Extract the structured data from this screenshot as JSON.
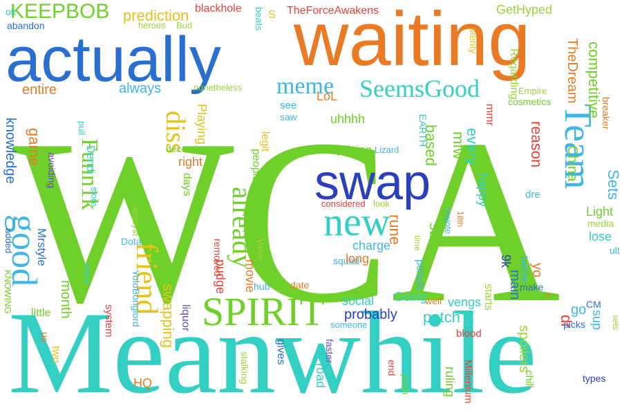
{
  "palette": {
    "green": "#6fd02a",
    "lime": "#9bd63a",
    "blue": "#2a6fd0",
    "navy": "#2b3fbf",
    "orange": "#ea7a24",
    "teal": "#33cfc3",
    "red": "#e8433a",
    "yellow": "#e6c21c",
    "sky": "#3fb6e6",
    "purple": "#6b4dbf"
  },
  "words": [
    {
      "text": "WCA",
      "color": "green"
    },
    {
      "text": "Meanwhile",
      "color": "teal"
    },
    {
      "text": "waiting",
      "color": "orange"
    },
    {
      "text": "actually",
      "color": "blue"
    },
    {
      "text": "swap",
      "color": "navy"
    },
    {
      "text": "new",
      "color": "teal"
    },
    {
      "text": "SPIRIT",
      "color": "green"
    },
    {
      "text": "Team",
      "color": "sky"
    },
    {
      "text": "good",
      "color": "sky"
    },
    {
      "text": "friend",
      "color": "yellow"
    },
    {
      "text": "already",
      "color": "green"
    },
    {
      "text": "diss",
      "color": "yellow"
    },
    {
      "text": "Funn1k",
      "color": "green"
    },
    {
      "text": "SeemsGood",
      "color": "teal"
    },
    {
      "text": "meme",
      "color": "sky"
    },
    {
      "text": "KEEPBOB",
      "color": "green"
    },
    {
      "text": "prediction",
      "color": "yellow"
    },
    {
      "text": "blackhole",
      "color": "red"
    },
    {
      "text": "TheForceAwakens",
      "color": "red"
    },
    {
      "text": "GetHyped",
      "color": "lime"
    },
    {
      "text": "TheDream",
      "color": "orange"
    },
    {
      "text": "ok",
      "color": "teal"
    },
    {
      "text": "abandon",
      "color": "blue"
    },
    {
      "text": "heroes",
      "color": "lime"
    },
    {
      "text": "Bud",
      "color": "lime"
    },
    {
      "text": "beats",
      "color": "teal"
    },
    {
      "text": "S",
      "color": "yellow"
    },
    {
      "text": "plenty",
      "color": "yellow"
    },
    {
      "text": "competitive",
      "color": "green"
    },
    {
      "text": "Regarding",
      "color": "lime"
    },
    {
      "text": "entire",
      "color": "orange"
    },
    {
      "text": "always",
      "color": "sky"
    },
    {
      "text": "nonetheless",
      "color": "lime"
    },
    {
      "text": "LoL",
      "color": "orange"
    },
    {
      "text": "see",
      "color": "sky"
    },
    {
      "text": "cosmetics",
      "color": "green"
    },
    {
      "text": "Empire",
      "color": "lime"
    },
    {
      "text": "breaker",
      "color": "orange"
    },
    {
      "text": "Playing",
      "color": "yellow"
    },
    {
      "text": "saw",
      "color": "sky"
    },
    {
      "text": "mmr",
      "color": "red"
    },
    {
      "text": "uhhhh",
      "color": "green"
    },
    {
      "text": "EARTH",
      "color": "teal"
    },
    {
      "text": "knowledge",
      "color": "blue"
    },
    {
      "text": "pull",
      "color": "teal"
    },
    {
      "text": "game",
      "color": "orange"
    },
    {
      "text": "december",
      "color": "green"
    },
    {
      "text": "legit",
      "color": "yellow"
    },
    {
      "text": "based",
      "color": "green"
    },
    {
      "text": "mfw",
      "color": "green"
    },
    {
      "text": "every",
      "color": "teal"
    },
    {
      "text": "reason",
      "color": "red"
    },
    {
      "text": "China",
      "color": "green"
    },
    {
      "text": "uprising",
      "color": "green"
    },
    {
      "text": "Lizard",
      "color": "sky"
    },
    {
      "text": "Sets",
      "color": "sky"
    },
    {
      "text": "Dendi",
      "color": "teal"
    },
    {
      "text": "avoiding",
      "color": "purple"
    },
    {
      "text": "right",
      "color": "orange"
    },
    {
      "text": "people",
      "color": "green"
    },
    {
      "text": "happy",
      "color": "teal"
    },
    {
      "text": "dre",
      "color": "sky"
    },
    {
      "text": "store",
      "color": "teal"
    },
    {
      "text": "days",
      "color": "green"
    },
    {
      "text": "considered",
      "color": "red"
    },
    {
      "text": "look",
      "color": "lime"
    },
    {
      "text": "Light",
      "color": "green"
    },
    {
      "text": "Mrstyle",
      "color": "blue"
    },
    {
      "text": "analyst",
      "color": "lime"
    },
    {
      "text": "coyote",
      "color": "sky"
    },
    {
      "text": "18th",
      "color": "orange"
    },
    {
      "text": "media",
      "color": "lime"
    },
    {
      "text": "YoloBonglord",
      "color": "sky"
    },
    {
      "text": "removed",
      "color": "red"
    },
    {
      "text": "lose",
      "color": "teal"
    },
    {
      "text": "KNOWING",
      "color": "green"
    },
    {
      "text": "added",
      "color": "blue"
    },
    {
      "text": "Dota",
      "color": "sky"
    },
    {
      "text": "squad",
      "color": "sky"
    },
    {
      "text": "rune",
      "color": "orange"
    },
    {
      "text": "still",
      "color": "green"
    },
    {
      "text": "time",
      "color": "lime"
    },
    {
      "text": "ult",
      "color": "sky"
    },
    {
      "text": "charge",
      "color": "sky"
    },
    {
      "text": "long",
      "color": "orange"
    },
    {
      "text": "9k",
      "color": "navy"
    },
    {
      "text": "pudge",
      "color": "red"
    },
    {
      "text": "movie",
      "color": "orange"
    },
    {
      "text": "Valve",
      "color": "lime"
    },
    {
      "text": "portals",
      "color": "sky"
    },
    {
      "text": "month",
      "color": "green"
    },
    {
      "text": "voice",
      "color": "teal"
    },
    {
      "text": "main",
      "color": "blue"
    },
    {
      "text": "twitter",
      "color": "sky"
    },
    {
      "text": "yo",
      "color": "orange"
    },
    {
      "text": "make",
      "color": "blue"
    },
    {
      "text": "date",
      "color": "orange"
    },
    {
      "text": "hub",
      "color": "sky"
    },
    {
      "text": "little",
      "color": "green"
    },
    {
      "text": "system",
      "color": "red"
    },
    {
      "text": "liquor",
      "color": "purple"
    },
    {
      "text": "swapping",
      "color": "yellow"
    },
    {
      "text": "social",
      "color": "teal"
    },
    {
      "text": "Going",
      "color": "teal"
    },
    {
      "text": "well",
      "color": "orange"
    },
    {
      "text": "starts",
      "color": "lime"
    },
    {
      "text": "e",
      "color": "orange"
    },
    {
      "text": "vengs",
      "color": "teal"
    },
    {
      "text": "go",
      "color": "sky"
    },
    {
      "text": "CM",
      "color": "blue"
    },
    {
      "text": "dr",
      "color": "red"
    },
    {
      "text": "sup",
      "color": "sky"
    },
    {
      "text": "probably",
      "color": "navy"
    },
    {
      "text": "someone",
      "color": "sky"
    },
    {
      "text": "patch",
      "color": "teal"
    },
    {
      "text": "blood",
      "color": "red"
    },
    {
      "text": "us",
      "color": "orange"
    },
    {
      "text": "two",
      "color": "yellow"
    },
    {
      "text": "gives",
      "color": "blue"
    },
    {
      "text": "faster",
      "color": "purple"
    },
    {
      "text": "spoilers",
      "color": "lime"
    },
    {
      "text": "picks",
      "color": "blue"
    },
    {
      "text": "sets",
      "color": "lime"
    },
    {
      "text": "HQ",
      "color": "orange"
    },
    {
      "text": "stalking",
      "color": "lime"
    },
    {
      "text": "road",
      "color": "teal"
    },
    {
      "text": "end",
      "color": "red"
    },
    {
      "text": "yeah",
      "color": "green"
    },
    {
      "text": "ruling",
      "color": "green"
    },
    {
      "text": "Millenium",
      "color": "red"
    },
    {
      "text": "chill",
      "color": "green"
    },
    {
      "text": "types",
      "color": "navy"
    }
  ]
}
